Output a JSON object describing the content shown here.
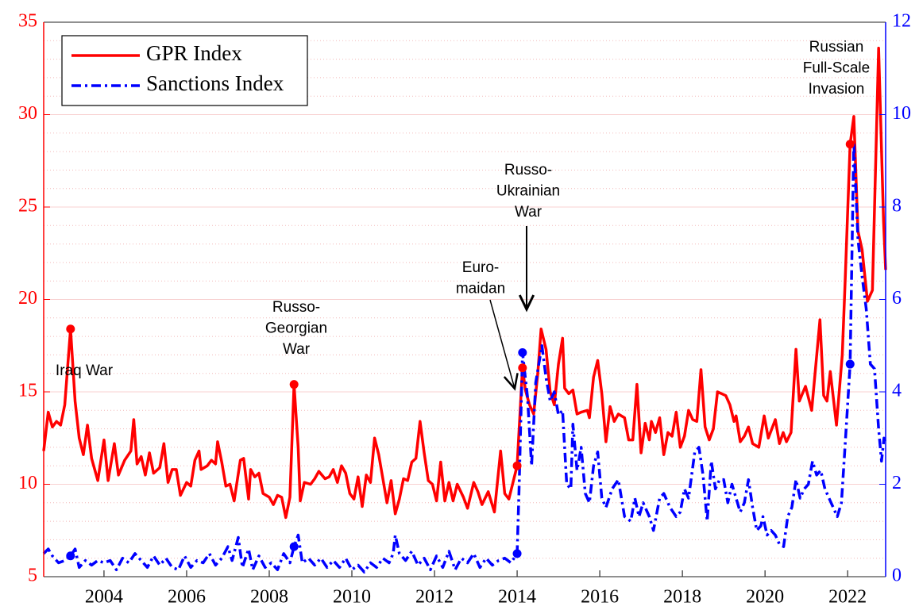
{
  "chart_data": {
    "type": "line",
    "xlim": [
      2002.54,
      2022.92
    ],
    "xticks": [
      2004,
      2006,
      2008,
      2010,
      2012,
      2014,
      2016,
      2018,
      2020,
      2022
    ],
    "ylim": [
      5,
      35
    ],
    "yticks": [
      5,
      10,
      15,
      20,
      25,
      30,
      35
    ],
    "y2lim": [
      0,
      12
    ],
    "y2ticks": [
      0,
      2,
      4,
      6,
      8,
      10,
      12
    ],
    "grid": true,
    "legend": "upper left",
    "series": [
      {
        "name": "GPR Index",
        "color": "#ff0000",
        "style": "solid",
        "axis": "y",
        "x": [
          2002.54,
          2002.65,
          2002.75,
          2002.85,
          2002.95,
          2003.05,
          2003.19,
          2003.3,
          2003.4,
          2003.5,
          2003.6,
          2003.7,
          2003.85,
          2004.0,
          2004.1,
          2004.25,
          2004.35,
          2004.5,
          2004.65,
          2004.72,
          2004.8,
          2004.9,
          2005.0,
          2005.1,
          2005.2,
          2005.35,
          2005.45,
          2005.55,
          2005.65,
          2005.75,
          2005.85,
          2006.0,
          2006.1,
          2006.2,
          2006.3,
          2006.35,
          2006.5,
          2006.6,
          2006.7,
          2006.75,
          2006.85,
          2006.95,
          2007.05,
          2007.15,
          2007.3,
          2007.38,
          2007.5,
          2007.55,
          2007.65,
          2007.75,
          2007.85,
          2008.0,
          2008.1,
          2008.2,
          2008.3,
          2008.4,
          2008.5,
          2008.6,
          2008.7,
          2008.75,
          2008.85,
          2009.0,
          2009.1,
          2009.2,
          2009.35,
          2009.45,
          2009.55,
          2009.65,
          2009.75,
          2009.85,
          2009.95,
          2010.05,
          2010.15,
          2010.25,
          2010.35,
          2010.45,
          2010.55,
          2010.65,
          2010.75,
          2010.85,
          2010.95,
          2011.05,
          2011.15,
          2011.25,
          2011.35,
          2011.45,
          2011.55,
          2011.65,
          2011.75,
          2011.85,
          2011.95,
          2012.05,
          2012.15,
          2012.25,
          2012.35,
          2012.45,
          2012.55,
          2012.7,
          2012.8,
          2012.95,
          2013.05,
          2013.15,
          2013.3,
          2013.45,
          2013.6,
          2013.7,
          2013.8,
          2014.0,
          2014.13,
          2014.2,
          2014.3,
          2014.4,
          2014.5,
          2014.58,
          2014.7,
          2014.8,
          2014.9,
          2015.0,
          2015.1,
          2015.15,
          2015.25,
          2015.35,
          2015.45,
          2015.55,
          2015.7,
          2015.75,
          2015.85,
          2015.95,
          2016.05,
          2016.15,
          2016.25,
          2016.35,
          2016.45,
          2016.6,
          2016.7,
          2016.8,
          2016.9,
          2017.0,
          2017.1,
          2017.2,
          2017.25,
          2017.35,
          2017.45,
          2017.55,
          2017.65,
          2017.75,
          2017.85,
          2017.95,
          2018.05,
          2018.15,
          2018.25,
          2018.35,
          2018.45,
          2018.55,
          2018.65,
          2018.75,
          2018.85,
          2018.95,
          2019.05,
          2019.15,
          2019.25,
          2019.3,
          2019.4,
          2019.5,
          2019.6,
          2019.7,
          2019.85,
          2019.98,
          2020.08,
          2020.25,
          2020.35,
          2020.44,
          2020.52,
          2020.63,
          2020.75,
          2020.83,
          2020.98,
          2021.13,
          2021.33,
          2021.42,
          2021.5,
          2021.58,
          2021.73,
          2021.87,
          2021.94,
          2022.06,
          2022.15,
          2022.25,
          2022.35,
          2022.48,
          2022.6,
          2022.75,
          2022.87,
          2022.92
        ],
        "values": [
          11.8,
          13.9,
          13.1,
          13.4,
          13.2,
          14.3,
          18.4,
          14.5,
          12.5,
          11.6,
          13.2,
          11.4,
          10.2,
          12.4,
          10.2,
          12.2,
          10.5,
          11.3,
          11.8,
          13.5,
          11.1,
          11.5,
          10.5,
          11.7,
          10.6,
          10.9,
          12.2,
          10.1,
          10.8,
          10.8,
          9.4,
          10.1,
          9.9,
          11.3,
          11.8,
          10.8,
          11.0,
          11.3,
          11.1,
          12.3,
          11.2,
          9.9,
          10.0,
          9.1,
          11.3,
          11.4,
          9.2,
          10.8,
          10.4,
          10.6,
          9.5,
          9.3,
          8.9,
          9.4,
          9.3,
          8.2,
          9.3,
          15.4,
          12.0,
          9.1,
          10.1,
          10.0,
          10.3,
          10.7,
          10.3,
          10.4,
          10.8,
          10.1,
          11.0,
          10.6,
          9.5,
          9.2,
          10.4,
          8.8,
          10.5,
          10.1,
          12.5,
          11.6,
          10.3,
          9.0,
          10.2,
          8.4,
          9.2,
          10.3,
          10.2,
          11.2,
          11.4,
          13.4,
          11.7,
          10.2,
          10.0,
          9.1,
          11.2,
          9.1,
          10.1,
          9.1,
          10.0,
          9.3,
          8.7,
          10.1,
          9.6,
          8.9,
          9.6,
          8.5,
          11.8,
          9.5,
          9.2,
          11.0,
          16.3,
          15.1,
          14.3,
          13.8,
          16.0,
          18.4,
          17.3,
          15.0,
          14.3,
          16.5,
          17.9,
          15.2,
          14.9,
          15.1,
          13.8,
          13.9,
          14.0,
          13.6,
          15.8,
          16.7,
          14.9,
          12.3,
          14.2,
          13.4,
          13.8,
          13.6,
          12.4,
          12.4,
          15.4,
          11.7,
          13.3,
          12.4,
          13.4,
          12.8,
          13.6,
          11.6,
          12.8,
          12.6,
          13.9,
          12.0,
          12.6,
          14.0,
          13.5,
          13.4,
          16.2,
          13.1,
          12.4,
          13.0,
          15.0,
          14.9,
          14.8,
          14.3,
          13.4,
          13.7,
          12.3,
          12.6,
          13.1,
          12.2,
          12.0,
          13.7,
          12.5,
          13.5,
          12.2,
          12.8,
          12.3,
          12.8,
          17.3,
          14.5,
          15.3,
          14.0,
          18.9,
          14.8,
          14.5,
          16.1,
          13.2,
          17.0,
          21.0,
          28.4,
          29.9,
          23.7,
          22.7,
          19.9,
          20.5,
          33.6,
          24.2,
          21.6
        ]
      },
      {
        "name": "Sanctions Index",
        "color": "#0000ff",
        "style": "dash-dot",
        "axis": "y2",
        "x": [
          2002.54,
          2002.65,
          2002.75,
          2002.9,
          2003.05,
          2003.19,
          2003.3,
          2003.4,
          2003.55,
          2003.7,
          2003.85,
          2004.0,
          2004.15,
          2004.3,
          2004.45,
          2004.6,
          2004.75,
          2004.9,
          2005.05,
          2005.2,
          2005.35,
          2005.5,
          2005.65,
          2005.8,
          2005.95,
          2006.1,
          2006.25,
          2006.4,
          2006.55,
          2006.7,
          2006.85,
          2007.0,
          2007.1,
          2007.25,
          2007.35,
          2007.5,
          2007.6,
          2007.75,
          2007.9,
          2008.05,
          2008.2,
          2008.35,
          2008.5,
          2008.6,
          2008.7,
          2008.8,
          2008.95,
          2009.1,
          2009.25,
          2009.4,
          2009.55,
          2009.7,
          2009.85,
          2010.0,
          2010.15,
          2010.3,
          2010.45,
          2010.6,
          2010.75,
          2010.9,
          2011.0,
          2011.05,
          2011.15,
          2011.3,
          2011.45,
          2011.6,
          2011.75,
          2011.9,
          2012.05,
          2012.2,
          2012.35,
          2012.5,
          2012.65,
          2012.8,
          2012.95,
          2013.1,
          2013.25,
          2013.4,
          2013.55,
          2013.7,
          2013.85,
          2014.0,
          2014.05,
          2014.13,
          2014.25,
          2014.35,
          2014.45,
          2014.6,
          2014.7,
          2014.8,
          2014.9,
          2015.0,
          2015.1,
          2015.2,
          2015.3,
          2015.35,
          2015.45,
          2015.55,
          2015.65,
          2015.75,
          2015.85,
          2015.95,
          2016.05,
          2016.15,
          2016.3,
          2016.45,
          2016.6,
          2016.75,
          2016.85,
          2016.95,
          2017.05,
          2017.2,
          2017.3,
          2017.45,
          2017.55,
          2017.7,
          2017.85,
          2017.95,
          2018.05,
          2018.15,
          2018.3,
          2018.4,
          2018.5,
          2018.6,
          2018.7,
          2018.8,
          2018.9,
          2019.0,
          2019.1,
          2019.2,
          2019.3,
          2019.4,
          2019.5,
          2019.6,
          2019.7,
          2019.8,
          2019.9,
          2019.95,
          2020.05,
          2020.15,
          2020.25,
          2020.35,
          2020.45,
          2020.55,
          2020.65,
          2020.75,
          2020.85,
          2020.95,
          2021.05,
          2021.15,
          2021.25,
          2021.35,
          2021.45,
          2021.55,
          2021.65,
          2021.75,
          2021.85,
          2021.95,
          2022.06,
          2022.15,
          2022.25,
          2022.35,
          2022.45,
          2022.55,
          2022.65,
          2022.75,
          2022.82,
          2022.88,
          2022.92
        ],
        "values": [
          0.5,
          0.6,
          0.45,
          0.3,
          0.35,
          0.45,
          0.6,
          0.2,
          0.35,
          0.25,
          0.35,
          0.3,
          0.35,
          0.15,
          0.4,
          0.3,
          0.5,
          0.35,
          0.2,
          0.45,
          0.25,
          0.4,
          0.2,
          0.15,
          0.45,
          0.2,
          0.35,
          0.3,
          0.5,
          0.25,
          0.4,
          0.65,
          0.35,
          0.85,
          0.2,
          0.6,
          0.15,
          0.45,
          0.2,
          0.3,
          0.15,
          0.5,
          0.3,
          0.65,
          0.9,
          0.3,
          0.4,
          0.25,
          0.4,
          0.2,
          0.35,
          0.2,
          0.4,
          0.15,
          0.25,
          0.1,
          0.3,
          0.2,
          0.4,
          0.3,
          0.5,
          0.9,
          0.5,
          0.35,
          0.55,
          0.25,
          0.4,
          0.15,
          0.45,
          0.2,
          0.55,
          0.15,
          0.4,
          0.3,
          0.5,
          0.2,
          0.4,
          0.25,
          0.35,
          0.4,
          0.3,
          0.5,
          2.0,
          4.85,
          3.9,
          2.4,
          4.2,
          5.0,
          4.3,
          3.8,
          4.0,
          3.5,
          3.6,
          2.0,
          1.9,
          3.3,
          2.3,
          2.8,
          1.8,
          1.6,
          2.4,
          2.7,
          1.7,
          1.5,
          1.9,
          2.1,
          1.3,
          1.2,
          1.7,
          1.3,
          1.6,
          1.3,
          1.0,
          1.7,
          1.8,
          1.5,
          1.3,
          1.4,
          1.9,
          1.7,
          2.7,
          2.8,
          2.2,
          1.2,
          2.5,
          1.9,
          2.1,
          2.1,
          1.6,
          2.0,
          1.7,
          1.4,
          1.6,
          2.1,
          1.5,
          1.0,
          1.1,
          1.3,
          0.9,
          1.0,
          0.9,
          0.7,
          0.65,
          1.3,
          1.5,
          2.1,
          1.7,
          1.9,
          2.0,
          2.5,
          2.2,
          2.3,
          1.9,
          1.7,
          1.5,
          1.3,
          1.6,
          3.0,
          4.6,
          9.4,
          7.3,
          6.5,
          5.8,
          4.6,
          4.5,
          3.2,
          2.5,
          3.0,
          2.9
        ]
      }
    ],
    "annotations": [
      {
        "text": [
          "Iraq War"
        ],
        "x": 2003.19
      },
      {
        "text": [
          "Russo-",
          "Georgian",
          "War"
        ],
        "x": 2008.6
      },
      {
        "text": [
          "Euro-",
          "maidan"
        ],
        "x": 2014.0
      },
      {
        "text": [
          "Russo-",
          "Ukrainian",
          "War"
        ],
        "x": 2014.13
      },
      {
        "text": [
          "Russian",
          "Full-Scale",
          "Invasion"
        ],
        "x": 2022.06
      }
    ]
  }
}
